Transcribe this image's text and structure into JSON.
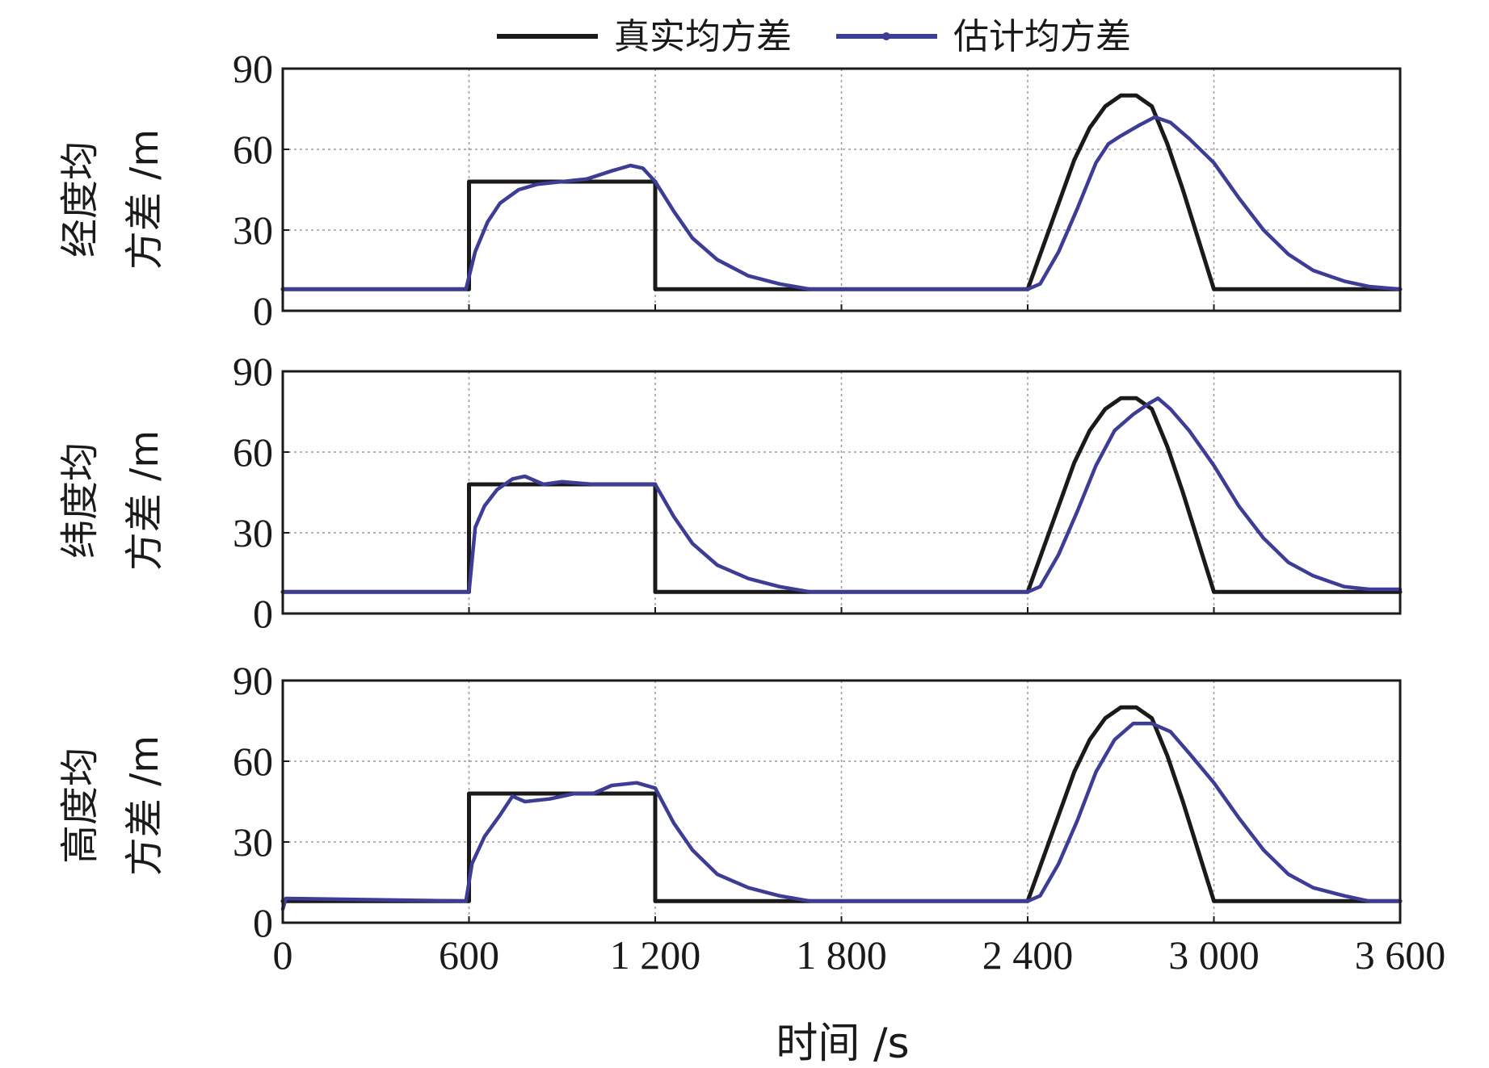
{
  "chart_data": {
    "type": "line",
    "legend": {
      "position": "top-center",
      "entries": [
        {
          "name": "真实均方差",
          "color": "#1a1a1a",
          "marker": "none"
        },
        {
          "name": "估计均方差",
          "color": "#3d3d96",
          "marker": "dot"
        }
      ]
    },
    "xlabel": "时间 /s",
    "xlim": [
      0,
      3600
    ],
    "xticks": [
      0,
      600,
      1200,
      1800,
      2400,
      3000,
      3600
    ],
    "xtick_labels": [
      "0",
      "600",
      "1 200",
      "1 800",
      "2 400",
      "3 000",
      "3 600"
    ],
    "grid": true,
    "panels": [
      {
        "ylabel_line1": "经度均",
        "ylabel_line2": "方差 /m",
        "ylim": [
          0,
          90
        ],
        "yticks": [
          0,
          30,
          60,
          90
        ],
        "series": [
          {
            "name": "真实均方差",
            "x": [
              0,
              600,
              600,
              1200,
              1200,
              2400,
              2500,
              2550,
              2600,
              2650,
              2700,
              2750,
              2800,
              2850,
              2900,
              3000,
              3600
            ],
            "y": [
              8,
              8,
              48,
              48,
              8,
              8,
              40,
              56,
              68,
              76,
              80,
              80,
              76,
              62,
              45,
              8,
              8
            ]
          },
          {
            "name": "估计均方差",
            "x": [
              0,
              590,
              620,
              660,
              700,
              760,
              820,
              900,
              980,
              1060,
              1120,
              1160,
              1200,
              1260,
              1320,
              1400,
              1500,
              1600,
              1700,
              1800,
              2000,
              2200,
              2400,
              2440,
              2500,
              2560,
              2620,
              2660,
              2700,
              2760,
              2810,
              2860,
              2920,
              3000,
              3080,
              3160,
              3240,
              3320,
              3420,
              3500,
              3600
            ],
            "y": [
              8,
              8,
              22,
              33,
              40,
              45,
              47,
              48,
              49,
              52,
              54,
              53,
              48,
              37,
              27,
              19,
              13,
              10,
              8,
              8,
              8,
              8,
              8,
              10,
              22,
              38,
              55,
              62,
              65,
              69,
              72,
              70,
              64,
              55,
              42,
              30,
              21,
              15,
              11,
              9,
              8
            ]
          }
        ]
      },
      {
        "ylabel_line1": "纬度均",
        "ylabel_line2": "方差 /m",
        "ylim": [
          0,
          90
        ],
        "yticks": [
          0,
          30,
          60,
          90
        ],
        "series": [
          {
            "name": "真实均方差",
            "x": [
              0,
              600,
              600,
              1200,
              1200,
              2400,
              2500,
              2550,
              2600,
              2650,
              2700,
              2750,
              2800,
              2850,
              2900,
              3000,
              3600
            ],
            "y": [
              8,
              8,
              48,
              48,
              8,
              8,
              40,
              56,
              68,
              76,
              80,
              80,
              76,
              62,
              45,
              8,
              8
            ]
          },
          {
            "name": "估计均方差",
            "x": [
              0,
              600,
              620,
              650,
              690,
              740,
              780,
              840,
              900,
              1000,
              1100,
              1180,
              1200,
              1260,
              1320,
              1400,
              1500,
              1600,
              1700,
              1800,
              2000,
              2200,
              2400,
              2440,
              2500,
              2560,
              2620,
              2680,
              2740,
              2790,
              2820,
              2860,
              2920,
              3000,
              3080,
              3160,
              3240,
              3320,
              3420,
              3500,
              3600
            ],
            "y": [
              8,
              8,
              32,
              40,
              46,
              50,
              51,
              48,
              49,
              48,
              48,
              48,
              48,
              36,
              26,
              18,
              13,
              10,
              8,
              8,
              8,
              8,
              8,
              10,
              22,
              38,
              55,
              68,
              74,
              78,
              80,
              76,
              68,
              55,
              40,
              28,
              19,
              14,
              10,
              9,
              9
            ]
          }
        ]
      },
      {
        "ylabel_line1": "高度均",
        "ylabel_line2": "方差 /m",
        "ylim": [
          0,
          90
        ],
        "yticks": [
          0,
          30,
          60,
          90
        ],
        "series": [
          {
            "name": "真实均方差",
            "x": [
              0,
              600,
              600,
              1200,
              1200,
              2400,
              2500,
              2550,
              2600,
              2650,
              2700,
              2750,
              2800,
              2850,
              2900,
              3000,
              3600
            ],
            "y": [
              8,
              8,
              48,
              48,
              8,
              8,
              40,
              56,
              68,
              76,
              80,
              80,
              76,
              62,
              45,
              8,
              8
            ]
          },
          {
            "name": "估计均方差",
            "x": [
              0,
              10,
              590,
              610,
              650,
              700,
              740,
              780,
              860,
              940,
              1000,
              1060,
              1140,
              1200,
              1260,
              1320,
              1400,
              1500,
              1600,
              1700,
              1800,
              2000,
              2200,
              2400,
              2440,
              2500,
              2560,
              2620,
              2680,
              2740,
              2800,
              2860,
              2920,
              3000,
              3080,
              3160,
              3240,
              3320,
              3420,
              3500,
              3600
            ],
            "y": [
              5,
              9,
              8,
              22,
              32,
              40,
              47,
              45,
              46,
              48,
              48,
              51,
              52,
              50,
              37,
              27,
              18,
              13,
              10,
              8,
              8,
              8,
              8,
              8,
              10,
              22,
              38,
              56,
              68,
              74,
              74,
              71,
              63,
              52,
              39,
              27,
              18,
              13,
              10,
              8,
              8
            ]
          }
        ]
      }
    ]
  }
}
